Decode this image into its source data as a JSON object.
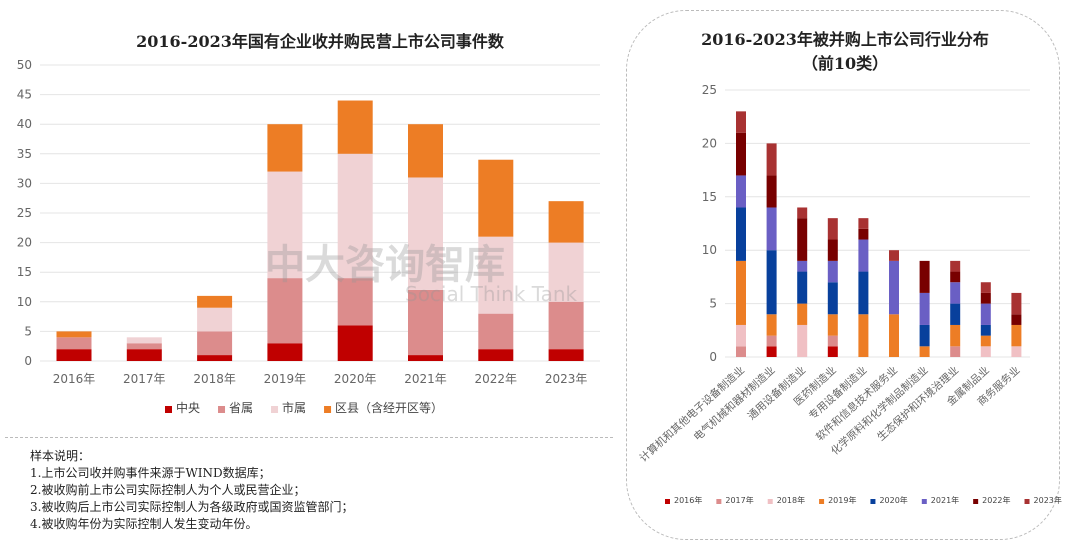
{
  "chart_data": [
    {
      "type": "bar",
      "stacked": true,
      "title": "2016-2023年国有企业收并购民营上市公司事件数",
      "categories": [
        "2016年",
        "2017年",
        "2018年",
        "2019年",
        "2020年",
        "2021年",
        "2022年",
        "2023年"
      ],
      "ylim": [
        0,
        50
      ],
      "yticks": [
        0,
        5,
        10,
        15,
        20,
        25,
        30,
        35,
        40,
        45,
        50
      ],
      "grid": true,
      "legend": "bottom",
      "series": [
        {
          "name": "中央",
          "color": "#c00000",
          "values": [
            2,
            2,
            1,
            3,
            6,
            1,
            2,
            2
          ]
        },
        {
          "name": "省属",
          "color": "#dc8c8c",
          "values": [
            2,
            1,
            4,
            11,
            8,
            11,
            6,
            8
          ]
        },
        {
          "name": "市属",
          "color": "#f0d2d4",
          "values": [
            0,
            1,
            4,
            18,
            21,
            19,
            13,
            10
          ]
        },
        {
          "name": "区县（含经开区等）",
          "color": "#ed7d25",
          "values": [
            1,
            0,
            2,
            8,
            9,
            9,
            13,
            7
          ]
        }
      ]
    },
    {
      "type": "bar",
      "stacked": true,
      "title": "2016-2023年被并购上市公司行业分布",
      "subtitle": "（前10类）",
      "categories": [
        "计算机和其他电子设备制造业",
        "电气机械和器材制造业",
        "通用设备制造业",
        "医药制造业",
        "专用设备制造业",
        "软件和信息技术服务业",
        "化学原料和化学制品制造业",
        "生态保护和环境治理业",
        "金属制品业",
        "商务服务业"
      ],
      "ylim": [
        0,
        25
      ],
      "yticks": [
        0,
        5,
        10,
        15,
        20,
        25
      ],
      "grid": true,
      "legend": "bottom",
      "series": [
        {
          "name": "2016年",
          "color": "#c00000",
          "values": [
            0,
            1,
            0,
            1,
            0,
            0,
            0,
            0,
            0,
            0
          ]
        },
        {
          "name": "2017年",
          "color": "#dc8c8c",
          "values": [
            1,
            1,
            0,
            1,
            0,
            0,
            0,
            1,
            0,
            0
          ]
        },
        {
          "name": "2018年",
          "color": "#f0c0c4",
          "values": [
            2,
            0,
            3,
            0,
            0,
            0,
            0,
            0,
            1,
            1
          ]
        },
        {
          "name": "2019年",
          "color": "#ed7d25",
          "values": [
            6,
            2,
            2,
            2,
            4,
            4,
            1,
            2,
            1,
            2
          ]
        },
        {
          "name": "2020年",
          "color": "#08409c",
          "values": [
            5,
            6,
            3,
            3,
            4,
            0,
            2,
            2,
            1,
            0
          ]
        },
        {
          "name": "2021年",
          "color": "#6a5fc4",
          "values": [
            3,
            4,
            1,
            2,
            3,
            5,
            3,
            2,
            2,
            0
          ]
        },
        {
          "name": "2022年",
          "color": "#780000",
          "values": [
            4,
            3,
            4,
            2,
            1,
            0,
            3,
            1,
            1,
            1
          ]
        },
        {
          "name": "2023年",
          "color": "#a83232",
          "values": [
            2,
            3,
            1,
            2,
            1,
            1,
            0,
            1,
            1,
            2
          ]
        }
      ]
    }
  ],
  "notes": {
    "heading": "样本说明：",
    "items": [
      "1.上市公司收并购事件来源于WIND数据库；",
      "2.被收购前上市公司实际控制人为个人或民营企业；",
      "3.被收购后上市公司实际控制人为各级政府或国资监管部门；",
      "4.被收购年份为实际控制人发生变动年份。"
    ]
  },
  "watermark": {
    "name": "中大咨询智库",
    "sub": "Social Think Tank"
  }
}
